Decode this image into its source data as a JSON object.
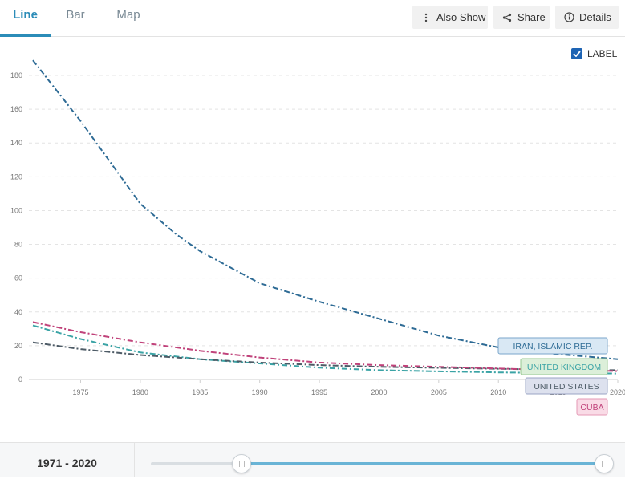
{
  "tabs": [
    {
      "label": "Line",
      "active": true
    },
    {
      "label": "Bar",
      "active": false
    },
    {
      "label": "Map",
      "active": false
    }
  ],
  "toolbar": {
    "also_show": "Also Show",
    "share": "Share",
    "details": "Details"
  },
  "label_toggle": {
    "text": "LABEL",
    "checked": true
  },
  "range": {
    "start": "1971",
    "end": "2020",
    "text": "1971 - 2020",
    "slider_start_fraction": 0.2,
    "slider_end_fraction": 1.0
  },
  "chart_data": {
    "type": "line",
    "xlabel": "",
    "ylabel": "",
    "xlim": [
      1971,
      2020
    ],
    "ylim": [
      0,
      180
    ],
    "x_ticks": [
      1975,
      1980,
      1985,
      1990,
      1995,
      2000,
      2005,
      2010,
      2015,
      2020
    ],
    "y_ticks": [
      0,
      20,
      40,
      60,
      80,
      100,
      120,
      140,
      160,
      180
    ],
    "grid": true,
    "line_style": "dash-dot",
    "series": [
      {
        "name": "IRAN, ISLAMIC REP.",
        "color": "#2e6b95",
        "label_fill": "#d9e8f4",
        "label_stroke": "#7aa6cb",
        "x": [
          1971,
          1975,
          1980,
          1983,
          1985,
          1990,
          1995,
          2000,
          2005,
          2010,
          2015,
          2020
        ],
        "y": [
          189,
          153,
          104,
          86,
          76,
          57,
          46,
          36,
          26,
          19,
          15,
          12
        ]
      },
      {
        "name": "UNITED KINGDOM",
        "color": "#3aa3a5",
        "label_fill": "#dcefd9",
        "label_stroke": "#98c992",
        "x": [
          1971,
          1975,
          1980,
          1985,
          1990,
          1995,
          2000,
          2005,
          2010,
          2015,
          2020
        ],
        "y": [
          32,
          24,
          16,
          12,
          9.5,
          7,
          5.5,
          4.8,
          4.2,
          3.8,
          3.5
        ]
      },
      {
        "name": "UNITED STATES",
        "color": "#4d5b66",
        "label_fill": "#dde1ee",
        "label_stroke": "#9aa4c4",
        "x": [
          1971,
          1975,
          1980,
          1985,
          1990,
          1995,
          2000,
          2005,
          2010,
          2015,
          2020
        ],
        "y": [
          22,
          18,
          14.5,
          12,
          10,
          8.5,
          7.5,
          6.9,
          6.3,
          5.8,
          5.5
        ]
      },
      {
        "name": "CUBA",
        "color": "#c0427a",
        "label_fill": "#f9dbe6",
        "label_stroke": "#e59ab6",
        "x": [
          1971,
          1975,
          1980,
          1985,
          1990,
          1995,
          2000,
          2005,
          2010,
          2015,
          2020
        ],
        "y": [
          34,
          28,
          22,
          17,
          13,
          10,
          8.5,
          7.5,
          6.5,
          5.5,
          5
        ]
      }
    ]
  }
}
